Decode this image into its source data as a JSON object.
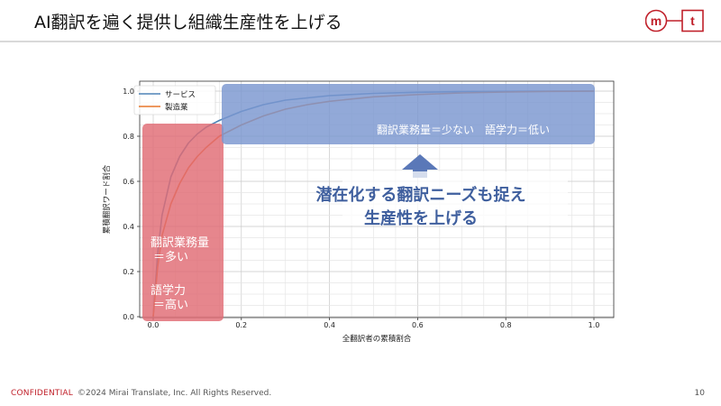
{
  "header": {
    "title": "AI翻訳を遍く提供し組織生産性を上げる"
  },
  "logo": {
    "left_letter": "m",
    "right_letter": "t",
    "accent": "#c0202a"
  },
  "footer": {
    "confidential": "CONFIDENTIAL",
    "copyright": "©2024 Mirai Translate, Inc. All Rights Reserved.",
    "page": "10"
  },
  "annotations": {
    "high_volume_line1": "翻訳業務量",
    "high_volume_line2": "＝多い",
    "high_skill_line1": "語学力",
    "high_skill_line2": "＝高い",
    "low_label": "翻訳業務量＝少ない　語学力＝低い",
    "message_line1": "潜在化する翻訳ニーズも捉え",
    "message_line2": "生産性を上げる"
  },
  "colors": {
    "red_box": "#e06b74",
    "blue_box": "#7a96d0",
    "arrow": "#5a78b8",
    "message": "#3f5f9e"
  },
  "chart_data": {
    "type": "line",
    "title": "",
    "xlabel": "全翻訳者の累積割合",
    "ylabel": "累積翻訳ワード割合",
    "xlim": [
      0,
      1
    ],
    "ylim": [
      0,
      1
    ],
    "xticks": [
      "0.0",
      "0.2",
      "0.4",
      "0.6",
      "0.8",
      "1.0"
    ],
    "yticks": [
      "0.0",
      "0.2",
      "0.4",
      "0.6",
      "0.8",
      "1.0"
    ],
    "grid": true,
    "legend": "top-left",
    "series": [
      {
        "name": "サービス",
        "color": "#4f84b7",
        "x": [
          0,
          0.01,
          0.02,
          0.04,
          0.06,
          0.08,
          0.1,
          0.12,
          0.15,
          0.2,
          0.25,
          0.3,
          0.35,
          0.4,
          0.5,
          0.6,
          0.7,
          0.8,
          0.9,
          1.0
        ],
        "y": [
          0,
          0.28,
          0.45,
          0.62,
          0.71,
          0.77,
          0.81,
          0.84,
          0.87,
          0.91,
          0.94,
          0.96,
          0.97,
          0.98,
          0.99,
          0.995,
          0.998,
          0.999,
          1.0,
          1.0
        ]
      },
      {
        "name": "製造業",
        "color": "#e8772a",
        "x": [
          0,
          0.01,
          0.02,
          0.04,
          0.06,
          0.08,
          0.1,
          0.12,
          0.15,
          0.2,
          0.25,
          0.3,
          0.35,
          0.4,
          0.5,
          0.6,
          0.7,
          0.8,
          0.9,
          1.0
        ],
        "y": [
          0,
          0.22,
          0.36,
          0.5,
          0.59,
          0.66,
          0.71,
          0.75,
          0.8,
          0.85,
          0.89,
          0.92,
          0.94,
          0.955,
          0.975,
          0.985,
          0.992,
          0.996,
          0.999,
          1.0
        ]
      }
    ]
  }
}
